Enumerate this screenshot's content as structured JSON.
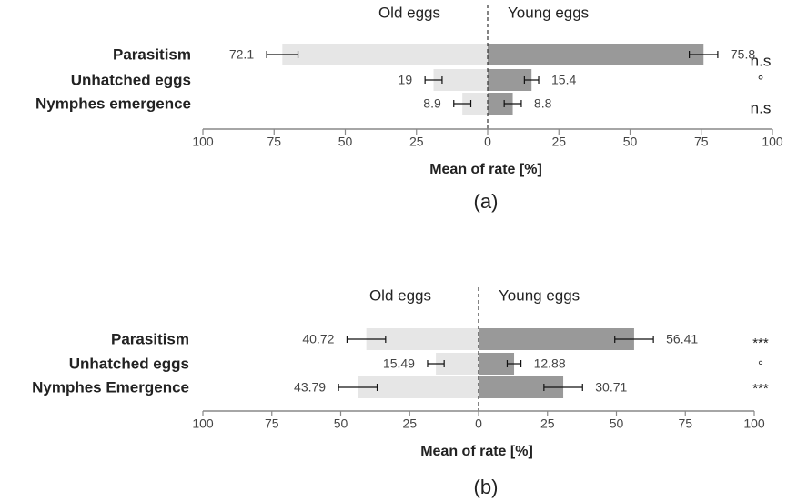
{
  "chart_data": [
    {
      "type": "bar",
      "orientation": "horizontal-diverging",
      "panel_label": "(a)",
      "categories": [
        "Parasitism",
        "Unhatched eggs",
        "Nymphes emergence"
      ],
      "series": [
        {
          "name": "Old eggs",
          "values": [
            72.1,
            19,
            8.9
          ],
          "errors": [
            5.5,
            3,
            3
          ],
          "value_labels": [
            "72.1",
            "19",
            "8.9"
          ],
          "color": "#e6e6e6"
        },
        {
          "name": "Young eggs",
          "values": [
            75.8,
            15.4,
            8.8
          ],
          "errors": [
            5,
            2.5,
            3
          ],
          "value_labels": [
            "75.8",
            "15.4",
            "8.8"
          ],
          "color": "#999999"
        }
      ],
      "significance": [
        "n.s",
        "°",
        "n.s"
      ],
      "xlabel": "Mean of rate [%]",
      "xlim": [
        0,
        100
      ],
      "ticks": [
        100,
        75,
        50,
        25,
        0,
        25,
        50,
        75,
        100
      ]
    },
    {
      "type": "bar",
      "orientation": "horizontal-diverging",
      "panel_label": "(b)",
      "categories": [
        "Parasitism",
        "Unhatched eggs",
        "Nymphes Emergence"
      ],
      "series": [
        {
          "name": "Old eggs",
          "values": [
            40.72,
            15.49,
            43.79
          ],
          "errors": [
            7,
            3,
            7
          ],
          "value_labels": [
            "40.72",
            "15.49",
            "43.79"
          ],
          "color": "#e6e6e6"
        },
        {
          "name": "Young eggs",
          "values": [
            56.41,
            12.88,
            30.71
          ],
          "errors": [
            7,
            2.5,
            7
          ],
          "value_labels": [
            "56.41",
            "12.88",
            "30.71"
          ],
          "color": "#999999"
        }
      ],
      "significance": [
        "***",
        "°",
        "***"
      ],
      "xlabel": "Mean of rate [%]",
      "xlim": [
        0,
        100
      ],
      "ticks": [
        100,
        75,
        50,
        25,
        0,
        25,
        50,
        75,
        100
      ]
    }
  ],
  "colors": {
    "old_bar": "#e6e6e6",
    "young_bar": "#999999",
    "axis": "#888888",
    "text": "#222222"
  }
}
